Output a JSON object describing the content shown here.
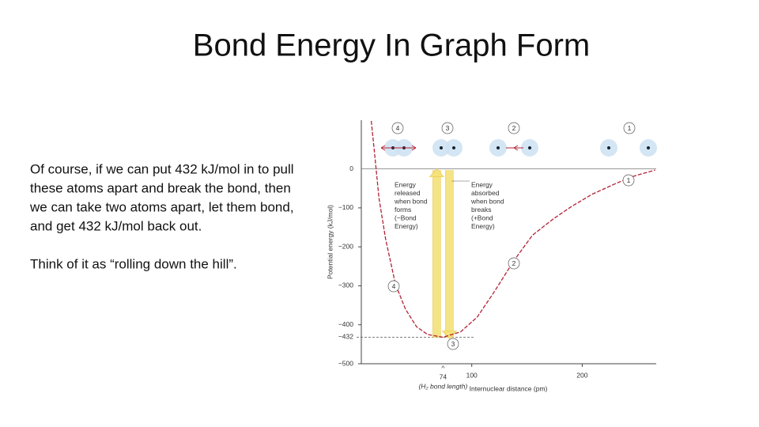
{
  "slide": {
    "title": "Bond Energy In Graph Form",
    "paragraphs": [
      [
        "Of course, if we can put 432 kJ/mol in to pull",
        "these atoms apart and break the bond, then",
        "we can take two atoms apart, let them bond,",
        "and get 432 kJ/mol back out."
      ],
      [
        "Think of it as “rolling down the hill”."
      ]
    ]
  },
  "chart_data": {
    "type": "line",
    "x_label": "Internuclear distance (pm)",
    "y_label": "Potential energy (kJ/mol)",
    "x": [
      9,
      12,
      16,
      22,
      31,
      40,
      50,
      60,
      74,
      90,
      105,
      120,
      138,
      155,
      174,
      190,
      209,
      230,
      245,
      266
    ],
    "series": [
      {
        "color": "#b22234",
        "values": [
          123,
          40,
          -75,
          -180,
          -297,
          -360,
          -405,
          -425,
          -432,
          -418,
          -380,
          -317,
          -236,
          -170,
          -128,
          -97,
          -65,
          -38,
          -20,
          -3
        ]
      }
    ],
    "xlim": [
      0,
      267
    ],
    "ylim": [
      -500,
      125
    ],
    "xticks": [
      100,
      200
    ],
    "yticks": [
      0,
      {
        "value": -100,
        "label": "−100"
      },
      {
        "value": -200,
        "label": "−200"
      },
      {
        "value": -300,
        "label": "−300"
      },
      {
        "value": -400,
        "label": "−400"
      },
      {
        "value": -432,
        "label": "−432"
      },
      {
        "value": -500,
        "label": "−500"
      }
    ],
    "bond_length": 74,
    "bond_length_label": "(H₂ bond length)",
    "released_label": [
      "Energy",
      "released",
      "when bond",
      "forms",
      "(−Bond",
      "Energy)"
    ],
    "absorbed_label": [
      "Energy",
      "absorbed",
      "when bond",
      "breaks",
      "(+Bond",
      "Energy)"
    ],
    "atom_labels": [
      "4",
      "3",
      "2",
      "1"
    ],
    "curve_labels": [
      "1",
      "2",
      "3",
      "4"
    ]
  }
}
